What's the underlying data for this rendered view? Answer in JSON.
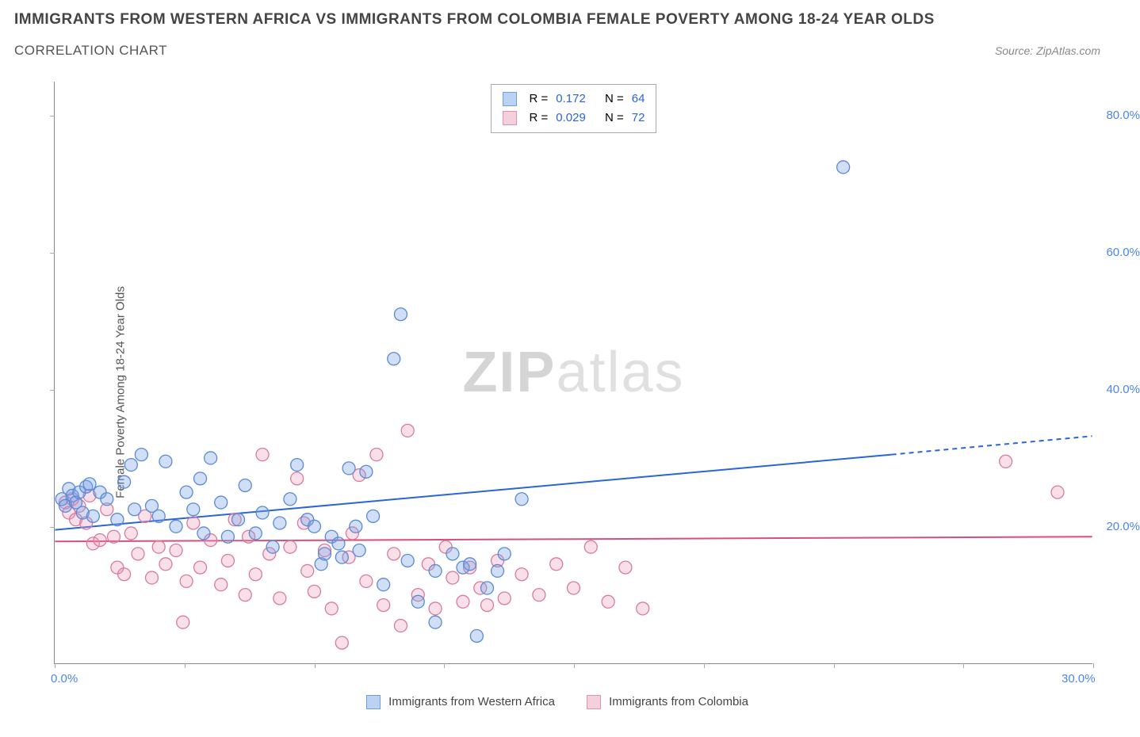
{
  "title": "IMMIGRANTS FROM WESTERN AFRICA VS IMMIGRANTS FROM COLOMBIA FEMALE POVERTY AMONG 18-24 YEAR OLDS",
  "subtitle": "CORRELATION CHART",
  "source_label": "Source: ZipAtlas.com",
  "y_axis_label": "Female Poverty Among 18-24 Year Olds",
  "watermark": {
    "bold": "ZIP",
    "light": "atlas"
  },
  "chart": {
    "type": "scatter",
    "xlim": [
      0,
      30
    ],
    "ylim": [
      0,
      85
    ],
    "x_ticks": [
      0,
      3.75,
      7.5,
      11.25,
      15,
      18.75,
      22.5,
      26.25,
      30
    ],
    "x_tick_labels": {
      "0": "0.0%",
      "30": "30.0%"
    },
    "y_ticks": [
      20,
      40,
      60,
      80
    ],
    "y_tick_labels": [
      "20.0%",
      "40.0%",
      "60.0%",
      "80.0%"
    ],
    "y_tick_label_color": "#4a86e8",
    "x_tick_label_color": "#4a86e8",
    "background_color": "#ffffff",
    "axis_color": "#888888",
    "marker_radius": 8,
    "marker_stroke_width": 1.3,
    "series": [
      {
        "name": "Immigrants from Western Africa",
        "fill": "rgba(120,160,230,0.35)",
        "stroke": "#5a8ad6",
        "swatch_fill": "#bcd2f2",
        "swatch_border": "#6f9de0",
        "trend_color": "#2a66d8",
        "trend_width": 2,
        "R": "0.172",
        "N": "64",
        "trend": {
          "x1": 0,
          "y1": 19.5,
          "x2_solid": 24.2,
          "y2_solid": 30.5,
          "x2_dash": 30,
          "y2_dash": 33.2
        },
        "points": [
          [
            0.2,
            24.0
          ],
          [
            0.3,
            23.0
          ],
          [
            0.4,
            25.5
          ],
          [
            0.5,
            24.5
          ],
          [
            0.6,
            23.5
          ],
          [
            0.7,
            25.0
          ],
          [
            0.8,
            22.0
          ],
          [
            0.9,
            25.8
          ],
          [
            1.0,
            26.2
          ],
          [
            1.1,
            21.5
          ],
          [
            1.3,
            25.0
          ],
          [
            1.5,
            24.0
          ],
          [
            1.8,
            21.0
          ],
          [
            2.0,
            26.5
          ],
          [
            2.2,
            29.0
          ],
          [
            2.5,
            30.5
          ],
          [
            2.8,
            23.0
          ],
          [
            3.0,
            21.5
          ],
          [
            3.2,
            29.5
          ],
          [
            3.5,
            20.0
          ],
          [
            3.8,
            25.0
          ],
          [
            4.0,
            22.5
          ],
          [
            4.2,
            27.0
          ],
          [
            4.5,
            30.0
          ],
          [
            4.8,
            23.5
          ],
          [
            5.0,
            18.5
          ],
          [
            5.3,
            21.0
          ],
          [
            5.5,
            26.0
          ],
          [
            5.8,
            19.0
          ],
          [
            6.0,
            22.0
          ],
          [
            6.5,
            20.5
          ],
          [
            6.8,
            24.0
          ],
          [
            7.0,
            29.0
          ],
          [
            7.3,
            21.0
          ],
          [
            7.5,
            20.0
          ],
          [
            7.7,
            14.5
          ],
          [
            7.8,
            16.0
          ],
          [
            8.0,
            18.5
          ],
          [
            8.2,
            17.5
          ],
          [
            8.5,
            28.5
          ],
          [
            8.7,
            20.0
          ],
          [
            8.8,
            16.5
          ],
          [
            9.0,
            28.0
          ],
          [
            9.2,
            21.5
          ],
          [
            9.5,
            11.5
          ],
          [
            9.8,
            44.5
          ],
          [
            10.0,
            51.0
          ],
          [
            10.2,
            15.0
          ],
          [
            10.5,
            9.0
          ],
          [
            11.0,
            13.5
          ],
          [
            11.0,
            6.0
          ],
          [
            11.5,
            16.0
          ],
          [
            11.8,
            14.0
          ],
          [
            12.0,
            14.5
          ],
          [
            12.2,
            4.0
          ],
          [
            12.5,
            11.0
          ],
          [
            12.8,
            13.5
          ],
          [
            13.0,
            16.0
          ],
          [
            13.5,
            24.0
          ],
          [
            22.8,
            72.5
          ],
          [
            8.3,
            15.5
          ],
          [
            6.3,
            17.0
          ],
          [
            4.3,
            19.0
          ],
          [
            2.3,
            22.5
          ]
        ]
      },
      {
        "name": "Immigrants from Colombia",
        "fill": "rgba(235,150,175,0.30)",
        "stroke": "#d87ba0",
        "swatch_fill": "#f4cfdc",
        "swatch_border": "#e293b4",
        "trend_color": "#d94f7a",
        "trend_width": 2,
        "R": "0.029",
        "N": "72",
        "trend": {
          "x1": 0,
          "y1": 17.8,
          "x2_solid": 30,
          "y2_solid": 18.5,
          "x2_dash": 30,
          "y2_dash": 18.5
        },
        "points": [
          [
            0.3,
            23.5
          ],
          [
            0.4,
            22.0
          ],
          [
            0.5,
            24.0
          ],
          [
            0.6,
            21.0
          ],
          [
            0.7,
            23.0
          ],
          [
            0.9,
            20.5
          ],
          [
            1.0,
            24.5
          ],
          [
            1.1,
            17.5
          ],
          [
            1.3,
            18.0
          ],
          [
            1.5,
            22.5
          ],
          [
            1.7,
            18.5
          ],
          [
            1.8,
            14.0
          ],
          [
            2.0,
            13.0
          ],
          [
            2.2,
            19.0
          ],
          [
            2.4,
            16.0
          ],
          [
            2.6,
            21.5
          ],
          [
            2.8,
            12.5
          ],
          [
            3.0,
            17.0
          ],
          [
            3.2,
            14.5
          ],
          [
            3.5,
            16.5
          ],
          [
            3.7,
            6.0
          ],
          [
            3.8,
            12.0
          ],
          [
            4.0,
            20.5
          ],
          [
            4.2,
            14.0
          ],
          [
            4.5,
            18.0
          ],
          [
            4.8,
            11.5
          ],
          [
            5.0,
            15.0
          ],
          [
            5.2,
            21.0
          ],
          [
            5.5,
            10.0
          ],
          [
            5.8,
            13.0
          ],
          [
            6.0,
            30.5
          ],
          [
            6.2,
            16.0
          ],
          [
            6.5,
            9.5
          ],
          [
            6.8,
            17.0
          ],
          [
            7.0,
            27.0
          ],
          [
            7.3,
            13.5
          ],
          [
            7.5,
            10.5
          ],
          [
            7.8,
            16.5
          ],
          [
            8.0,
            8.0
          ],
          [
            8.3,
            3.0
          ],
          [
            8.5,
            15.5
          ],
          [
            8.8,
            27.5
          ],
          [
            9.0,
            12.0
          ],
          [
            9.3,
            30.5
          ],
          [
            9.5,
            8.5
          ],
          [
            9.8,
            16.0
          ],
          [
            10.0,
            5.5
          ],
          [
            10.2,
            34.0
          ],
          [
            10.5,
            10.0
          ],
          [
            10.8,
            14.5
          ],
          [
            11.0,
            8.0
          ],
          [
            11.3,
            17.0
          ],
          [
            11.5,
            12.5
          ],
          [
            11.8,
            9.0
          ],
          [
            12.0,
            14.0
          ],
          [
            12.3,
            11.0
          ],
          [
            12.5,
            8.5
          ],
          [
            12.8,
            15.0
          ],
          [
            13.0,
            9.5
          ],
          [
            13.5,
            13.0
          ],
          [
            14.0,
            10.0
          ],
          [
            14.5,
            14.5
          ],
          [
            15.0,
            11.0
          ],
          [
            15.5,
            17.0
          ],
          [
            16.0,
            9.0
          ],
          [
            16.5,
            14.0
          ],
          [
            17.0,
            8.0
          ],
          [
            27.5,
            29.5
          ],
          [
            29.0,
            25.0
          ],
          [
            7.2,
            20.5
          ],
          [
            8.6,
            19.0
          ],
          [
            5.6,
            18.5
          ]
        ]
      }
    ],
    "legend_top": {
      "r_label": "R =",
      "n_label": "N ="
    }
  }
}
